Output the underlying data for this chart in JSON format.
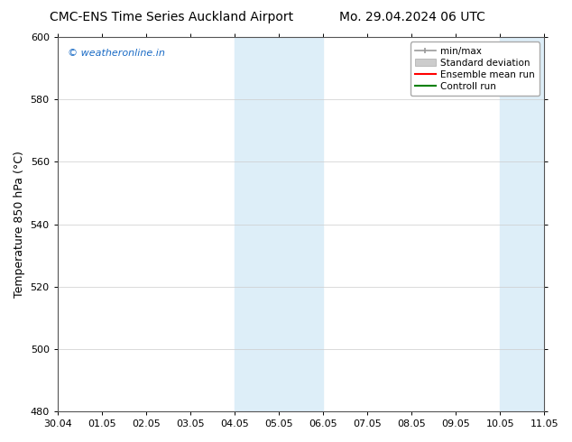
{
  "title_left": "CMC-ENS Time Series Auckland Airport",
  "title_right": "Mo. 29.04.2024 06 UTC",
  "ylabel": "Temperature 850 hPa (°C)",
  "xtick_labels": [
    "30.04",
    "01.05",
    "02.05",
    "03.05",
    "04.05",
    "05.05",
    "06.05",
    "07.05",
    "08.05",
    "09.05",
    "10.05",
    "11.05"
  ],
  "ylim": [
    480,
    600
  ],
  "yticks": [
    480,
    500,
    520,
    540,
    560,
    580,
    600
  ],
  "shaded_regions": [
    {
      "xstart": 4.0,
      "xend": 4.5,
      "color": "#ddeef8"
    },
    {
      "xstart": 4.5,
      "xend": 5.5,
      "color": "#ddeef8"
    },
    {
      "xstart": 5.5,
      "xend": 6.0,
      "color": "#ddeef8"
    },
    {
      "xstart": 10.0,
      "xend": 10.5,
      "color": "#ddeef8"
    },
    {
      "xstart": 10.5,
      "xend": 11.5,
      "color": "#ddeef8"
    }
  ],
  "watermark_text": "© weatheronline.in",
  "watermark_color": "#1a6bc5",
  "legend_entries": [
    {
      "label": "min/max",
      "type": "minmax",
      "color": "#999999"
    },
    {
      "label": "Standard deviation",
      "type": "stddev",
      "color": "#cccccc"
    },
    {
      "label": "Ensemble mean run",
      "type": "line",
      "color": "red",
      "lw": 1.5
    },
    {
      "label": "Controll run",
      "type": "line",
      "color": "green",
      "lw": 1.5
    }
  ],
  "background_color": "#ffffff",
  "plot_bg_color": "#ffffff",
  "spine_color": "#555555",
  "title_fontsize": 10,
  "tick_fontsize": 8,
  "ylabel_fontsize": 9,
  "legend_fontsize": 7.5
}
